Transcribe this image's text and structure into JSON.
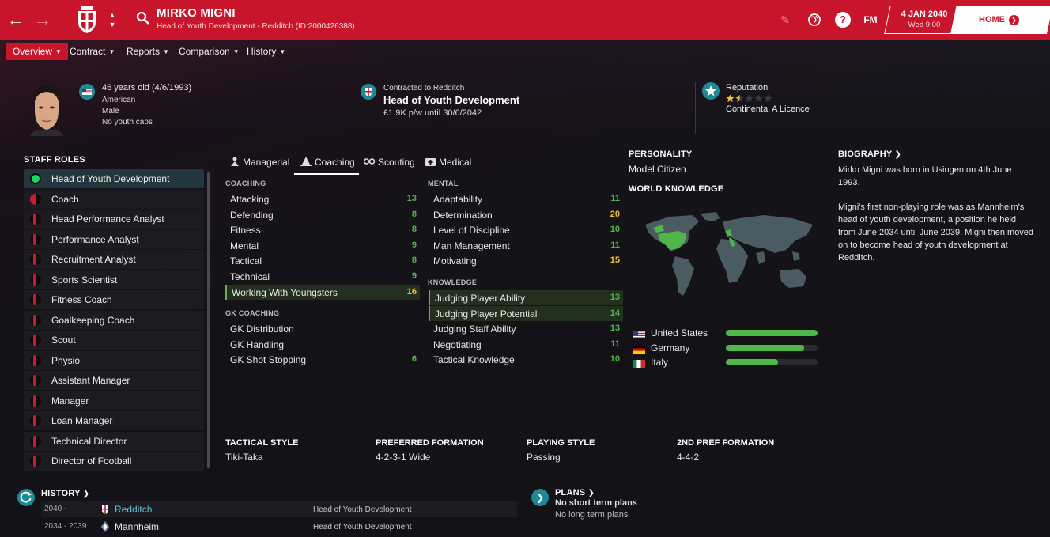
{
  "header": {
    "name": "MIRKO MIGNI",
    "subtitle": "Head of Youth Development - Redditch (ID:2000426388)",
    "date": "4 JAN 2040",
    "time": "Wed 9:00",
    "home_label": "HOME",
    "fm_label": "FM",
    "accent": "#c8152c"
  },
  "tabs": [
    {
      "label": "Overview"
    },
    {
      "label": "Contract"
    },
    {
      "label": "Reports"
    },
    {
      "label": "Comparison"
    },
    {
      "label": "History"
    }
  ],
  "info": {
    "age": "46 years old (4/6/1993)",
    "nationality": "American",
    "gender": "Male",
    "caps": "No youth caps",
    "contract_label": "Contracted to Redditch",
    "job": "Head of Youth Development",
    "wage": "£1.9K p/w until 30/6/2042",
    "reputation_label": "Reputation",
    "reputation_stars": 1.5,
    "licence": "Continental A Licence"
  },
  "staff_roles": {
    "title": "STAFF ROLES",
    "items": [
      {
        "label": "Head of Youth Development",
        "level": 1.0
      },
      {
        "label": "Coach",
        "level": 0.5
      },
      {
        "label": "Head Performance Analyst",
        "level": 0.4
      },
      {
        "label": "Performance Analyst",
        "level": 0.3
      },
      {
        "label": "Recruitment Analyst",
        "level": 0.3
      },
      {
        "label": "Sports Scientist",
        "level": 0.3
      },
      {
        "label": "Fitness Coach",
        "level": 0.3
      },
      {
        "label": "Goalkeeping Coach",
        "level": 0.3
      },
      {
        "label": "Scout",
        "level": 0.3
      },
      {
        "label": "Physio",
        "level": 0.3
      },
      {
        "label": "Assistant Manager",
        "level": 0.3
      },
      {
        "label": "Manager",
        "level": 0.3
      },
      {
        "label": "Loan Manager",
        "level": 0.3
      },
      {
        "label": "Technical Director",
        "level": 0.3
      },
      {
        "label": "Director of Football",
        "level": 0.3
      }
    ]
  },
  "attr_tabs": [
    {
      "label": "Managerial"
    },
    {
      "label": "Coaching"
    },
    {
      "label": "Scouting"
    },
    {
      "label": "Medical"
    }
  ],
  "coaching": {
    "title": "COACHING",
    "items": [
      {
        "name": "Attacking",
        "value": "13"
      },
      {
        "name": "Defending",
        "value": "8"
      },
      {
        "name": "Fitness",
        "value": "8"
      },
      {
        "name": "Mental",
        "value": "9"
      },
      {
        "name": "Tactical",
        "value": "8"
      },
      {
        "name": "Technical",
        "value": "9"
      },
      {
        "name": "Working With Youngsters",
        "value": "16"
      }
    ]
  },
  "gk_coaching": {
    "title": "GK COACHING",
    "items": [
      {
        "name": "GK Distribution",
        "value": ""
      },
      {
        "name": "GK Handling",
        "value": ""
      },
      {
        "name": "GK Shot Stopping",
        "value": "6"
      }
    ]
  },
  "mental": {
    "title": "MENTAL",
    "items": [
      {
        "name": "Adaptability",
        "value": "11"
      },
      {
        "name": "Determination",
        "value": "20"
      },
      {
        "name": "Level of Discipline",
        "value": "10"
      },
      {
        "name": "Man Management",
        "value": "11"
      },
      {
        "name": "Motivating",
        "value": "15"
      }
    ]
  },
  "knowledge": {
    "title": "KNOWLEDGE",
    "items": [
      {
        "name": "Judging Player Ability",
        "value": "13"
      },
      {
        "name": "Judging Player Potential",
        "value": "14"
      },
      {
        "name": "Judging Staff Ability",
        "value": "13"
      },
      {
        "name": "Negotiating",
        "value": "11"
      },
      {
        "name": "Tactical Knowledge",
        "value": "10"
      }
    ]
  },
  "personality": {
    "title": "PERSONALITY",
    "value": "Model Citizen"
  },
  "world_knowledge": {
    "title": "WORLD KNOWLEDGE",
    "countries": [
      {
        "name": "United States",
        "level": 1.0
      },
      {
        "name": "Germany",
        "level": 0.85
      },
      {
        "name": "Italy",
        "level": 0.57
      }
    ]
  },
  "biography": {
    "title": "BIOGRAPHY",
    "para1": "Mirko Migni was born in Usingen on 4th June 1993.",
    "para2": "Migni's first non-playing role was as Mannheim's head of youth development, a position he held from June 2034 until June 2039. Migni then moved on to become head of youth development at Redditch."
  },
  "styles": [
    {
      "label": "TACTICAL STYLE",
      "value": "Tiki-Taka"
    },
    {
      "label": "PREFERRED FORMATION",
      "value": "4-2-3-1 Wide"
    },
    {
      "label": "PLAYING STYLE",
      "value": "Passing"
    },
    {
      "label": "2ND PREF FORMATION",
      "value": "4-4-2"
    }
  ],
  "history": {
    "title": "HISTORY",
    "rows": [
      {
        "years": "2040 -",
        "club": "Redditch",
        "role": "Head of Youth Development"
      },
      {
        "years": "2034 - 2039",
        "club": "Mannheim",
        "role": "Head of Youth Development"
      }
    ]
  },
  "plans": {
    "title": "PLANS",
    "short": "No short term plans",
    "long": "No long term plans"
  }
}
